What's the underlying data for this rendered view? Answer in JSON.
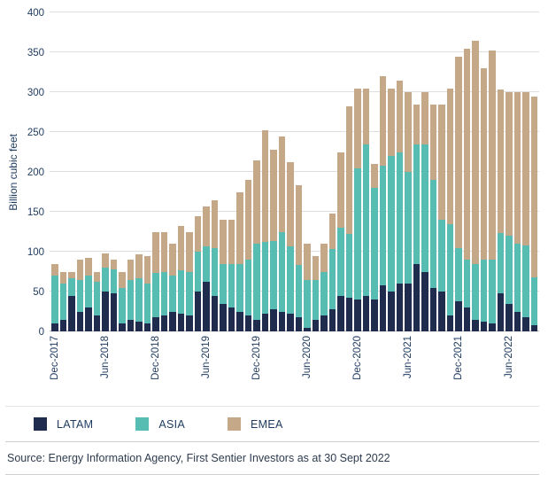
{
  "chart_data": {
    "type": "bar",
    "stacked": true,
    "title": "",
    "xlabel": "",
    "ylabel": "Billion cubic feet",
    "ylim": [
      0,
      400
    ],
    "ytick_step": 50,
    "grid": true,
    "legend_position": "bottom",
    "xtick_every": 6,
    "xtick_labels": [
      "Dec-2017",
      "Jun-2018",
      "Dec-2018",
      "Jun-2019",
      "Dec-2019",
      "Jun-2020",
      "Dec-2020",
      "Jun-2021",
      "Dec-2021",
      "Jun-2022"
    ],
    "x": [
      "Dec-2017",
      "Jan-2018",
      "Feb-2018",
      "Mar-2018",
      "Apr-2018",
      "May-2018",
      "Jun-2018",
      "Jul-2018",
      "Aug-2018",
      "Sep-2018",
      "Oct-2018",
      "Nov-2018",
      "Dec-2018",
      "Jan-2019",
      "Feb-2019",
      "Mar-2019",
      "Apr-2019",
      "May-2019",
      "Jun-2019",
      "Jul-2019",
      "Aug-2019",
      "Sep-2019",
      "Oct-2019",
      "Nov-2019",
      "Dec-2019",
      "Jan-2020",
      "Feb-2020",
      "Mar-2020",
      "Apr-2020",
      "May-2020",
      "Jun-2020",
      "Jul-2020",
      "Aug-2020",
      "Sep-2020",
      "Oct-2020",
      "Nov-2020",
      "Dec-2020",
      "Jan-2021",
      "Feb-2021",
      "Mar-2021",
      "Apr-2021",
      "May-2021",
      "Jun-2021",
      "Jul-2021",
      "Aug-2021",
      "Sep-2021",
      "Oct-2021",
      "Nov-2021",
      "Dec-2021",
      "Jan-2022",
      "Feb-2022",
      "Mar-2022",
      "Apr-2022",
      "May-2022",
      "Jun-2022",
      "Jul-2022",
      "Aug-2022",
      "Sep-2022"
    ],
    "series": [
      {
        "name": "LATAM",
        "color": "#1f2c4d",
        "values": [
          10,
          15,
          45,
          25,
          30,
          20,
          50,
          48,
          10,
          15,
          12,
          10,
          18,
          20,
          25,
          22,
          20,
          50,
          62,
          45,
          35,
          30,
          25,
          20,
          15,
          22,
          28,
          25,
          22,
          18,
          5,
          15,
          20,
          28,
          45,
          42,
          40,
          45,
          40,
          58,
          50,
          60,
          60,
          85,
          75,
          55,
          50,
          20,
          38,
          30,
          15,
          12,
          10,
          48,
          35,
          25,
          18,
          8
        ]
      },
      {
        "name": "ASIA",
        "color": "#57bcb1",
        "values": [
          60,
          45,
          22,
          40,
          40,
          42,
          30,
          30,
          45,
          50,
          55,
          50,
          55,
          55,
          45,
          55,
          55,
          50,
          45,
          60,
          50,
          55,
          60,
          70,
          95,
          90,
          85,
          100,
          85,
          65,
          60,
          50,
          55,
          75,
          85,
          80,
          165,
          190,
          140,
          150,
          170,
          165,
          140,
          150,
          160,
          135,
          90,
          115,
          67,
          60,
          70,
          78,
          80,
          75,
          85,
          85,
          90,
          60
        ]
      },
      {
        "name": "EMEA",
        "color": "#c5a888",
        "values": [
          15,
          15,
          8,
          25,
          22,
          13,
          18,
          12,
          20,
          25,
          30,
          35,
          52,
          50,
          40,
          55,
          50,
          45,
          50,
          60,
          55,
          55,
          90,
          100,
          105,
          140,
          115,
          120,
          105,
          100,
          45,
          30,
          35,
          45,
          95,
          160,
          100,
          70,
          30,
          112,
          85,
          90,
          100,
          50,
          65,
          95,
          145,
          170,
          240,
          265,
          280,
          240,
          262,
          180,
          180,
          190,
          192,
          227
        ]
      }
    ]
  },
  "legend": {
    "items": [
      "LATAM",
      "ASIA",
      "EMEA"
    ]
  },
  "source": "Source: Energy Information Agency, First Sentier Investors as at 30 Sept 2022"
}
